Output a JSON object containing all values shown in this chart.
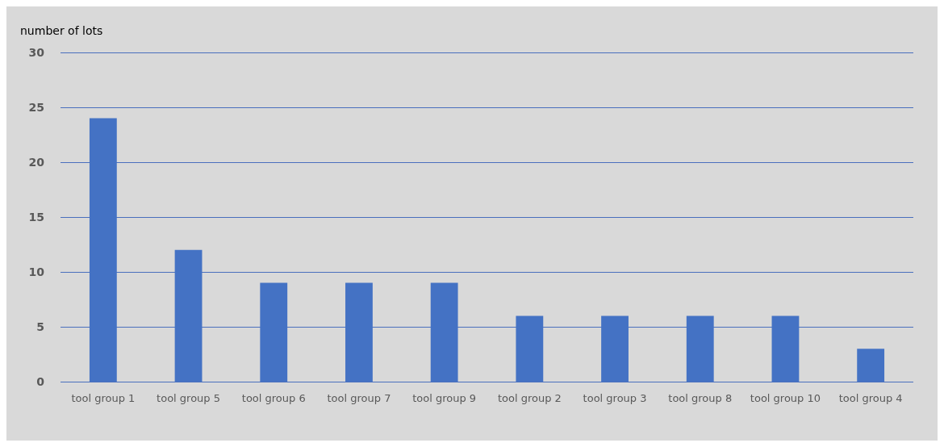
{
  "chart_data": {
    "type": "bar",
    "ylabel": "number of lots",
    "categories": [
      "tool group 1",
      "tool group 5",
      "tool group 6",
      "tool group 7",
      "tool group 9",
      "tool group 2",
      "tool group 3",
      "tool group 8",
      "tool group 10",
      "tool group 4"
    ],
    "values": [
      24,
      12,
      9,
      9,
      9,
      6,
      6,
      6,
      6,
      3
    ],
    "color": "#4472c4",
    "ylim": [
      0,
      30
    ],
    "yticks": [
      0,
      5,
      10,
      15,
      20,
      25,
      30
    ],
    "grid": "y"
  }
}
